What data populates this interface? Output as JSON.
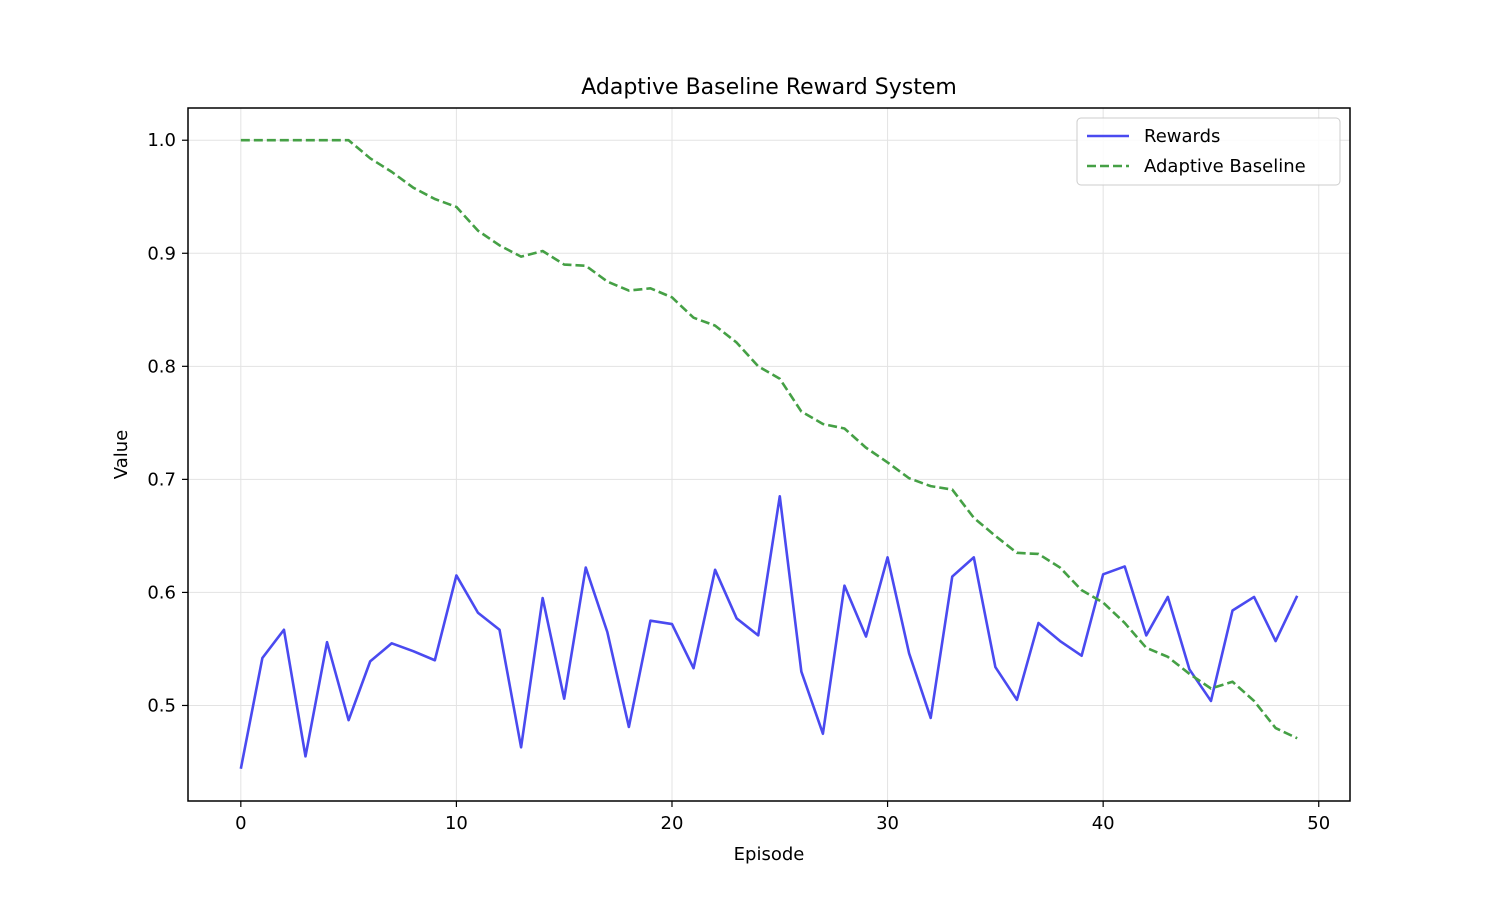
{
  "chart_data": {
    "type": "line",
    "title": "Adaptive Baseline Reward System",
    "xlabel": "Episode",
    "ylabel": "Value",
    "xlim": [
      -2.45,
      51.45
    ],
    "ylim": [
      0.4155,
      1.0285
    ],
    "xticks": [
      0,
      10,
      20,
      30,
      40,
      50
    ],
    "xtick_labels": [
      "0",
      "10",
      "20",
      "30",
      "40",
      "50"
    ],
    "yticks": [
      0.5,
      0.6,
      0.7,
      0.8,
      0.9,
      1.0
    ],
    "ytick_labels": [
      "0.5",
      "0.6",
      "0.7",
      "0.8",
      "0.9",
      "1.0"
    ],
    "grid": true,
    "legend_position": "top-right",
    "x": [
      0,
      1,
      2,
      3,
      4,
      5,
      6,
      7,
      8,
      9,
      10,
      11,
      12,
      13,
      14,
      15,
      16,
      17,
      18,
      19,
      20,
      21,
      22,
      23,
      24,
      25,
      26,
      27,
      28,
      29,
      30,
      31,
      32,
      33,
      34,
      35,
      36,
      37,
      38,
      39,
      40,
      41,
      42,
      43,
      44,
      45,
      46,
      47,
      48,
      49
    ],
    "series": [
      {
        "name": "Rewards",
        "color": "#4a4af0",
        "style": "solid",
        "values": [
          0.444,
          0.542,
          0.567,
          0.455,
          0.556,
          0.487,
          0.539,
          0.555,
          0.548,
          0.54,
          0.615,
          0.582,
          0.567,
          0.463,
          0.595,
          0.506,
          0.622,
          0.565,
          0.481,
          0.575,
          0.572,
          0.533,
          0.62,
          0.577,
          0.562,
          0.685,
          0.53,
          0.475,
          0.606,
          0.561,
          0.631,
          0.546,
          0.489,
          0.614,
          0.631,
          0.534,
          0.505,
          0.573,
          0.557,
          0.544,
          0.616,
          0.623,
          0.562,
          0.596,
          0.532,
          0.504,
          0.584,
          0.596,
          0.557,
          0.597
        ]
      },
      {
        "name": "Adaptive Baseline",
        "color": "#45a045",
        "style": "dashed",
        "values": [
          1.0,
          1.0,
          1.0,
          1.0,
          1.0,
          1.0,
          0.984,
          0.972,
          0.958,
          0.948,
          0.941,
          0.92,
          0.907,
          0.897,
          0.902,
          0.89,
          0.889,
          0.875,
          0.867,
          0.869,
          0.861,
          0.843,
          0.836,
          0.821,
          0.8,
          0.789,
          0.76,
          0.749,
          0.745,
          0.728,
          0.715,
          0.701,
          0.694,
          0.691,
          0.666,
          0.65,
          0.635,
          0.634,
          0.622,
          0.602,
          0.591,
          0.573,
          0.551,
          0.543,
          0.528,
          0.515,
          0.521,
          0.504,
          0.48,
          0.471
        ]
      }
    ]
  }
}
